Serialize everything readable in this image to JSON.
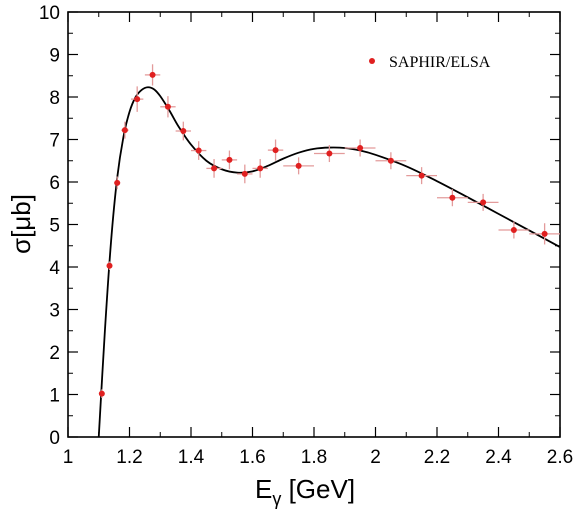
{
  "chart_data": {
    "type": "scatter",
    "xlabel_main": "E",
    "xlabel_sub": "γ",
    "xlabel_unit": " [GeV]",
    "ylabel": "σ[μb]",
    "xlim": [
      1.0,
      2.6
    ],
    "ylim": [
      0,
      10
    ],
    "xticks": [
      1,
      1.2,
      1.4,
      1.6,
      1.8,
      2,
      2.2,
      2.4,
      2.6
    ],
    "xtick_labels": [
      "1",
      "1.2",
      "1.4",
      "1.6",
      "1.8",
      "2",
      "2.2",
      "2.4",
      "2.6"
    ],
    "yticks": [
      0,
      1,
      2,
      3,
      4,
      5,
      6,
      7,
      8,
      9,
      10
    ],
    "ytick_labels": [
      "0",
      "1",
      "2",
      "3",
      "4",
      "5",
      "6",
      "7",
      "8",
      "9",
      "10"
    ],
    "legend": {
      "label": "SAPHIR/ELSA",
      "position": "top-right"
    },
    "colors": {
      "points": "#e02020",
      "errorbars": "#e39b9b",
      "curve": "#000000"
    },
    "series": [
      {
        "name": "SAPHIR/ELSA",
        "kind": "points",
        "points": [
          {
            "x": 1.11,
            "y": 1.02,
            "xerr": 0.006,
            "yerr": 0.1
          },
          {
            "x": 1.135,
            "y": 4.03,
            "xerr": 0.008,
            "yerr": 0.1
          },
          {
            "x": 1.16,
            "y": 5.98,
            "xerr": 0.01,
            "yerr": 0.15
          },
          {
            "x": 1.185,
            "y": 7.22,
            "xerr": 0.012,
            "yerr": 0.2
          },
          {
            "x": 1.225,
            "y": 7.95,
            "xerr": 0.02,
            "yerr": 0.3
          },
          {
            "x": 1.275,
            "y": 8.52,
            "xerr": 0.025,
            "yerr": 0.25
          },
          {
            "x": 1.325,
            "y": 7.77,
            "xerr": 0.025,
            "yerr": 0.25
          },
          {
            "x": 1.375,
            "y": 7.2,
            "xerr": 0.025,
            "yerr": 0.22
          },
          {
            "x": 1.425,
            "y": 6.74,
            "xerr": 0.025,
            "yerr": 0.22
          },
          {
            "x": 1.475,
            "y": 6.32,
            "xerr": 0.025,
            "yerr": 0.22
          },
          {
            "x": 1.525,
            "y": 6.52,
            "xerr": 0.025,
            "yerr": 0.22
          },
          {
            "x": 1.575,
            "y": 6.19,
            "xerr": 0.025,
            "yerr": 0.22
          },
          {
            "x": 1.625,
            "y": 6.32,
            "xerr": 0.025,
            "yerr": 0.22
          },
          {
            "x": 1.675,
            "y": 6.75,
            "xerr": 0.025,
            "yerr": 0.25
          },
          {
            "x": 1.75,
            "y": 6.38,
            "xerr": 0.05,
            "yerr": 0.2
          },
          {
            "x": 1.85,
            "y": 6.67,
            "xerr": 0.05,
            "yerr": 0.2
          },
          {
            "x": 1.95,
            "y": 6.8,
            "xerr": 0.05,
            "yerr": 0.2
          },
          {
            "x": 2.05,
            "y": 6.5,
            "xerr": 0.05,
            "yerr": 0.2
          },
          {
            "x": 2.15,
            "y": 6.15,
            "xerr": 0.05,
            "yerr": 0.2
          },
          {
            "x": 2.25,
            "y": 5.63,
            "xerr": 0.05,
            "yerr": 0.2
          },
          {
            "x": 2.35,
            "y": 5.52,
            "xerr": 0.05,
            "yerr": 0.2
          },
          {
            "x": 2.45,
            "y": 4.87,
            "xerr": 0.05,
            "yerr": 0.2
          },
          {
            "x": 2.55,
            "y": 4.78,
            "xerr": 0.05,
            "yerr": 0.25
          }
        ]
      },
      {
        "kind": "curve",
        "points": [
          {
            "x": 1.1,
            "y": 0.0
          },
          {
            "x": 1.12,
            "y": 2.5
          },
          {
            "x": 1.14,
            "y": 4.6
          },
          {
            "x": 1.16,
            "y": 6.1
          },
          {
            "x": 1.18,
            "y": 7.05
          },
          {
            "x": 1.2,
            "y": 7.65
          },
          {
            "x": 1.22,
            "y": 8.0
          },
          {
            "x": 1.24,
            "y": 8.17
          },
          {
            "x": 1.26,
            "y": 8.23
          },
          {
            "x": 1.28,
            "y": 8.18
          },
          {
            "x": 1.3,
            "y": 8.02
          },
          {
            "x": 1.33,
            "y": 7.68
          },
          {
            "x": 1.36,
            "y": 7.3
          },
          {
            "x": 1.4,
            "y": 6.88
          },
          {
            "x": 1.45,
            "y": 6.5
          },
          {
            "x": 1.5,
            "y": 6.3
          },
          {
            "x": 1.55,
            "y": 6.22
          },
          {
            "x": 1.6,
            "y": 6.25
          },
          {
            "x": 1.65,
            "y": 6.38
          },
          {
            "x": 1.7,
            "y": 6.55
          },
          {
            "x": 1.75,
            "y": 6.69
          },
          {
            "x": 1.8,
            "y": 6.78
          },
          {
            "x": 1.85,
            "y": 6.81
          },
          {
            "x": 1.9,
            "y": 6.8
          },
          {
            "x": 1.95,
            "y": 6.74
          },
          {
            "x": 2.0,
            "y": 6.64
          },
          {
            "x": 2.1,
            "y": 6.37
          },
          {
            "x": 2.2,
            "y": 6.02
          },
          {
            "x": 2.3,
            "y": 5.64
          },
          {
            "x": 2.4,
            "y": 5.25
          },
          {
            "x": 2.5,
            "y": 4.86
          },
          {
            "x": 2.6,
            "y": 4.47
          }
        ]
      }
    ]
  }
}
